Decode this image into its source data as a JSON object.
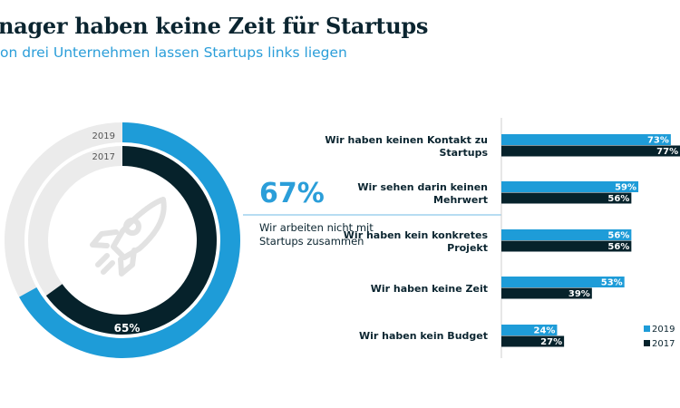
{
  "title": "nager haben keine Zeit für Startups",
  "subtitle": "on drei Unternehmen lassen Startups links liegen",
  "colors": {
    "y2019": "#1e9cd8",
    "y2017": "#06222b",
    "track": "#ebebeb",
    "text": "#0b2530"
  },
  "chart_data": [
    {
      "type": "pie",
      "variant": "donut-rings",
      "icon": "rocket-icon",
      "series": [
        {
          "name": "2019",
          "value": 67
        },
        {
          "name": "2017",
          "value": 65
        }
      ],
      "labels": {
        "y2019": "2019",
        "y2017": "2017",
        "value2017": "65%"
      },
      "highlight": {
        "value": "67%",
        "label": "Wir arbeiten nicht mit Startups zusammen"
      }
    },
    {
      "type": "bar",
      "orientation": "horizontal",
      "categories": [
        "Wir haben keinen Kontakt zu Startups",
        "Wir sehen darin keinen Mehrwert",
        "Wir haben kein konkretes Projekt",
        "Wir haben keine Zeit",
        "Wir haben kein Budget"
      ],
      "series": [
        {
          "name": "2019",
          "values": [
            73,
            59,
            56,
            53,
            24
          ]
        },
        {
          "name": "2017",
          "values": [
            77,
            56,
            56,
            39,
            27
          ]
        }
      ],
      "unit": "%",
      "legend": "bottom-right"
    }
  ]
}
